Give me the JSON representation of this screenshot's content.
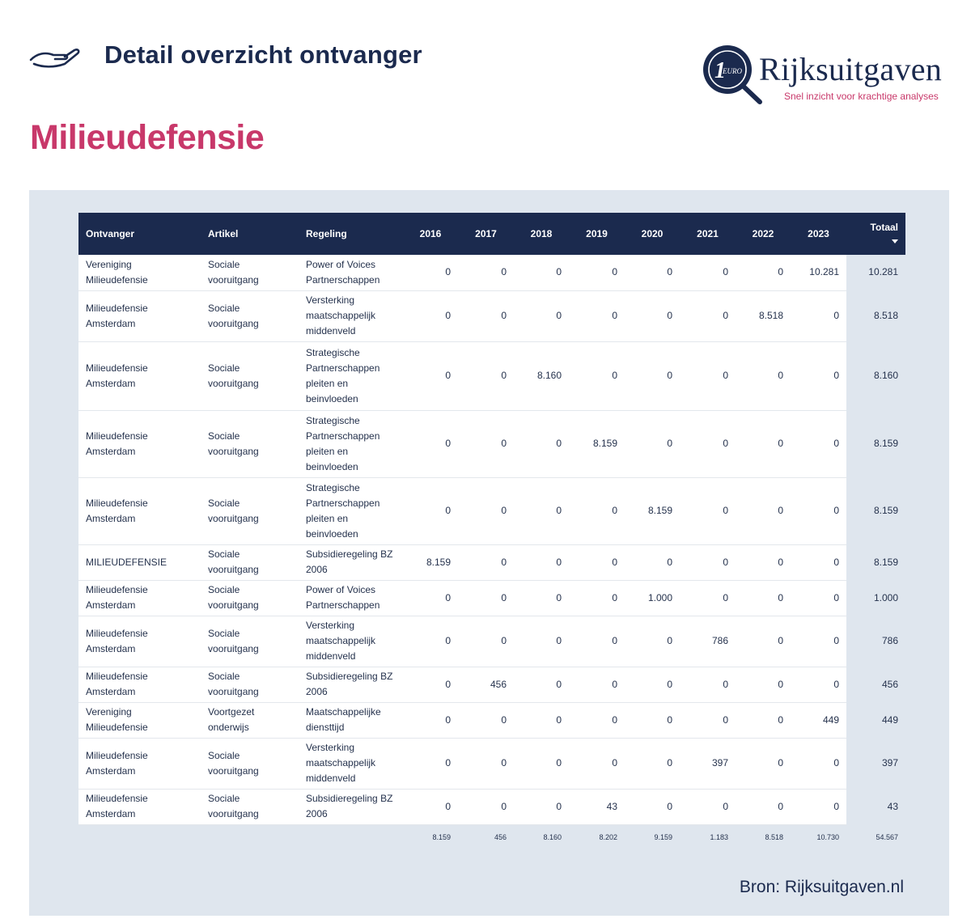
{
  "header": {
    "page_heading": "Detail overzicht ontvanger",
    "recipient": "Milieudefensie",
    "logo": {
      "badge_text": "1 EURO",
      "name": "Rijksuitgaven",
      "tagline": "Snel inzicht voor krachtige analyses"
    }
  },
  "colors": {
    "navy": "#1b2a4e",
    "accent_pink": "#c8386a",
    "panel_bg": "#dfe6ee"
  },
  "table": {
    "columns": [
      "Ontvanger",
      "Artikel",
      "Regeling",
      "2016",
      "2017",
      "2018",
      "2019",
      "2020",
      "2021",
      "2022",
      "2023",
      "Totaal"
    ],
    "sorted_column": "Totaal",
    "rows": [
      {
        "ontvanger": "Vereniging Milieudefensie",
        "artikel": "Sociale vooruitgang",
        "regeling": "Power of Voices Partnerschappen",
        "values": [
          "0",
          "0",
          "0",
          "0",
          "0",
          "0",
          "0",
          "10.281"
        ],
        "totaal": "10.281"
      },
      {
        "ontvanger": "Milieudefensie Amsterdam",
        "artikel": "Sociale vooruitgang",
        "regeling": "Versterking maatschappelijk middenveld",
        "values": [
          "0",
          "0",
          "0",
          "0",
          "0",
          "0",
          "8.518",
          "0"
        ],
        "totaal": "8.518"
      },
      {
        "ontvanger": "Milieudefensie Amsterdam",
        "artikel": "Sociale vooruitgang",
        "regeling": "Strategische Partnerschappen pleiten en beinvloeden",
        "values": [
          "0",
          "0",
          "8.160",
          "0",
          "0",
          "0",
          "0",
          "0"
        ],
        "totaal": "8.160"
      },
      {
        "ontvanger": "Milieudefensie Amsterdam",
        "artikel": "Sociale vooruitgang",
        "regeling": "Strategische Partnerschappen pleiten en beinvloeden",
        "values": [
          "0",
          "0",
          "0",
          "8.159",
          "0",
          "0",
          "0",
          "0"
        ],
        "totaal": "8.159"
      },
      {
        "ontvanger": "Milieudefensie Amsterdam",
        "artikel": "Sociale vooruitgang",
        "regeling": "Strategische Partnerschappen pleiten en beinvloeden",
        "values": [
          "0",
          "0",
          "0",
          "0",
          "8.159",
          "0",
          "0",
          "0"
        ],
        "totaal": "8.159"
      },
      {
        "ontvanger": "MILIEUDEFENSIE",
        "artikel": "Sociale vooruitgang",
        "regeling": "Subsidieregeling BZ 2006",
        "values": [
          "8.159",
          "0",
          "0",
          "0",
          "0",
          "0",
          "0",
          "0"
        ],
        "totaal": "8.159"
      },
      {
        "ontvanger": "Milieudefensie Amsterdam",
        "artikel": "Sociale vooruitgang",
        "regeling": "Power of Voices Partnerschappen",
        "values": [
          "0",
          "0",
          "0",
          "0",
          "1.000",
          "0",
          "0",
          "0"
        ],
        "totaal": "1.000"
      },
      {
        "ontvanger": "Milieudefensie Amsterdam",
        "artikel": "Sociale vooruitgang",
        "regeling": "Versterking maatschappelijk middenveld",
        "values": [
          "0",
          "0",
          "0",
          "0",
          "0",
          "786",
          "0",
          "0"
        ],
        "totaal": "786"
      },
      {
        "ontvanger": "Milieudefensie Amsterdam",
        "artikel": "Sociale vooruitgang",
        "regeling": "Subsidieregeling BZ 2006",
        "values": [
          "0",
          "456",
          "0",
          "0",
          "0",
          "0",
          "0",
          "0"
        ],
        "totaal": "456"
      },
      {
        "ontvanger": "Vereniging Milieudefensie",
        "artikel": "Voortgezet onderwijs",
        "regeling": "Maatschappelijke diensttijd",
        "values": [
          "0",
          "0",
          "0",
          "0",
          "0",
          "0",
          "0",
          "449"
        ],
        "totaal": "449"
      },
      {
        "ontvanger": "Milieudefensie Amsterdam",
        "artikel": "Sociale vooruitgang",
        "regeling": "Versterking maatschappelijk middenveld",
        "values": [
          "0",
          "0",
          "0",
          "0",
          "0",
          "397",
          "0",
          "0"
        ],
        "totaal": "397"
      },
      {
        "ontvanger": "Milieudefensie Amsterdam",
        "artikel": "Sociale vooruitgang",
        "regeling": "Subsidieregeling BZ 2006",
        "values": [
          "0",
          "0",
          "0",
          "43",
          "0",
          "0",
          "0",
          "0"
        ],
        "totaal": "43"
      }
    ],
    "totals": [
      "8.159",
      "456",
      "8.160",
      "8.202",
      "9.159",
      "1.183",
      "8.518",
      "10.730",
      "54.567"
    ]
  },
  "footer": {
    "source": "Bron: Rijksuitgaven.nl"
  }
}
